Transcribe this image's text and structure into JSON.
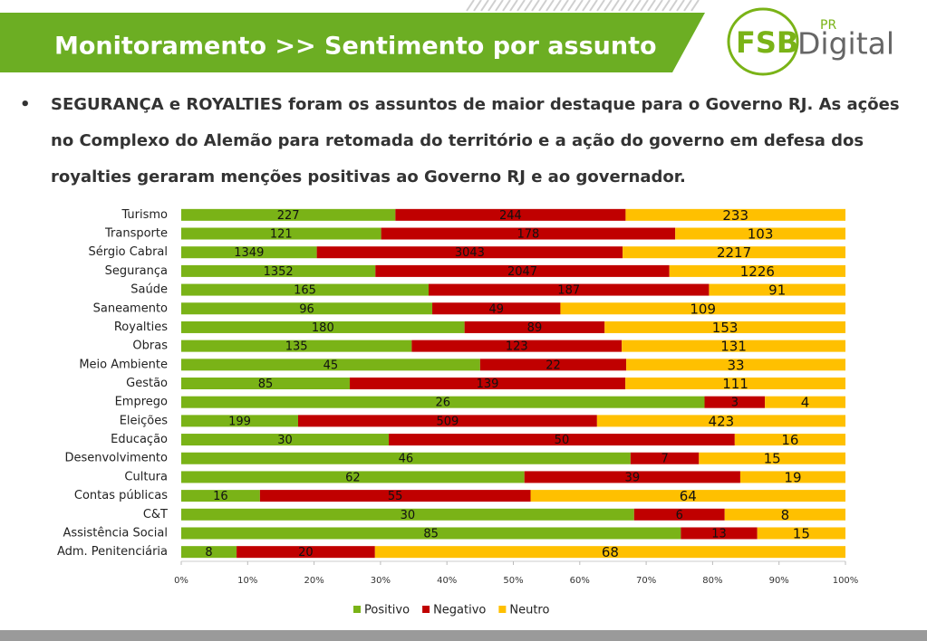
{
  "header": {
    "title": "Monitoramento >> Sentimento por assunto"
  },
  "logo": {
    "brand": "FSB",
    "superscript": "PR",
    "product": "Digital"
  },
  "bullet": "SEGURANÇA e ROYALTIES foram os assuntos de maior destaque para o Governo RJ. As ações no Complexo do Alemão para retomada do território e a ação do governo em defesa dos royalties geraram menções positivas ao Governo RJ e ao governador.",
  "chart_data": {
    "type": "bar",
    "orientation": "horizontal",
    "stacking": "percent",
    "categories": [
      "Turismo",
      "Transporte",
      "Sérgio Cabral",
      "Segurança",
      "Saúde",
      "Saneamento",
      "Royalties",
      "Obras",
      "Meio Ambiente",
      "Gestão",
      "Emprego",
      "Eleições",
      "Educação",
      "Desenvolvimento",
      "Cultura",
      "Contas públicas",
      "C&T",
      "Assistência Social",
      "Adm. Penitenciária"
    ],
    "series": [
      {
        "name": "Positivo",
        "color": "#7ab317",
        "values": [
          227,
          121,
          1349,
          1352,
          165,
          96,
          180,
          135,
          45,
          85,
          26,
          199,
          30,
          46,
          62,
          16,
          30,
          85,
          8
        ]
      },
      {
        "name": "Negativo",
        "color": "#c00000",
        "values": [
          244,
          178,
          3043,
          2047,
          187,
          49,
          89,
          123,
          22,
          139,
          3,
          509,
          50,
          7,
          39,
          55,
          6,
          13,
          20
        ]
      },
      {
        "name": "Neutro",
        "color": "#ffc000",
        "values": [
          233,
          103,
          2217,
          1226,
          91,
          109,
          153,
          131,
          33,
          111,
          4,
          423,
          16,
          15,
          19,
          64,
          8,
          15,
          68
        ]
      }
    ],
    "xlim": [
      0,
      100
    ],
    "xticks": [
      {
        "value": 0,
        "label": "0%"
      },
      {
        "value": 10,
        "label": "10%"
      },
      {
        "value": 20,
        "label": "20%"
      },
      {
        "value": 30,
        "label": "30%"
      },
      {
        "value": 40,
        "label": "40%"
      },
      {
        "value": 50,
        "label": "50%"
      },
      {
        "value": 60,
        "label": "60%"
      },
      {
        "value": 70,
        "label": "70%"
      },
      {
        "value": 80,
        "label": "80%"
      },
      {
        "value": 90,
        "label": "90%"
      },
      {
        "value": 100,
        "label": "100%"
      }
    ],
    "legend": "bottom"
  }
}
